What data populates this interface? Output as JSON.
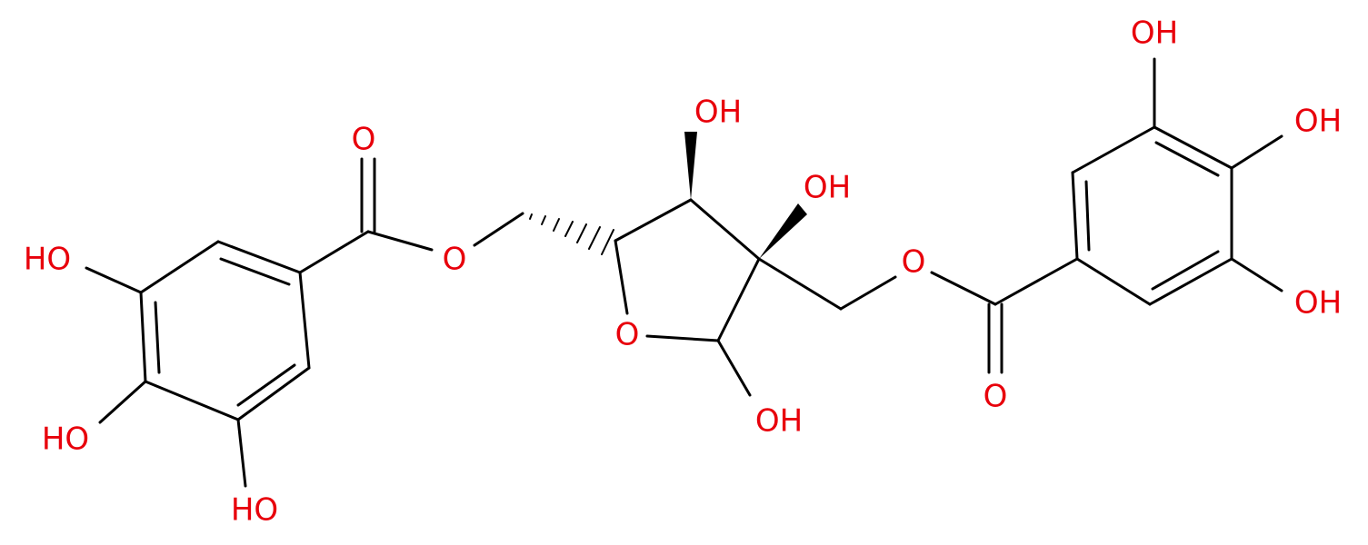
{
  "nodes": [
    {
      "label": "O"
    },
    {
      "label": "HO"
    },
    {
      "label": "HO"
    },
    {
      "label": "HO"
    },
    {
      "label": "O"
    },
    {
      "label": "OH"
    },
    {
      "label": "OH"
    },
    {
      "label": "O"
    },
    {
      "label": "OH"
    },
    {
      "label": "O"
    },
    {
      "label": "O"
    },
    {
      "label": "OH"
    },
    {
      "label": "OH"
    },
    {
      "label": "OH"
    }
  ]
}
